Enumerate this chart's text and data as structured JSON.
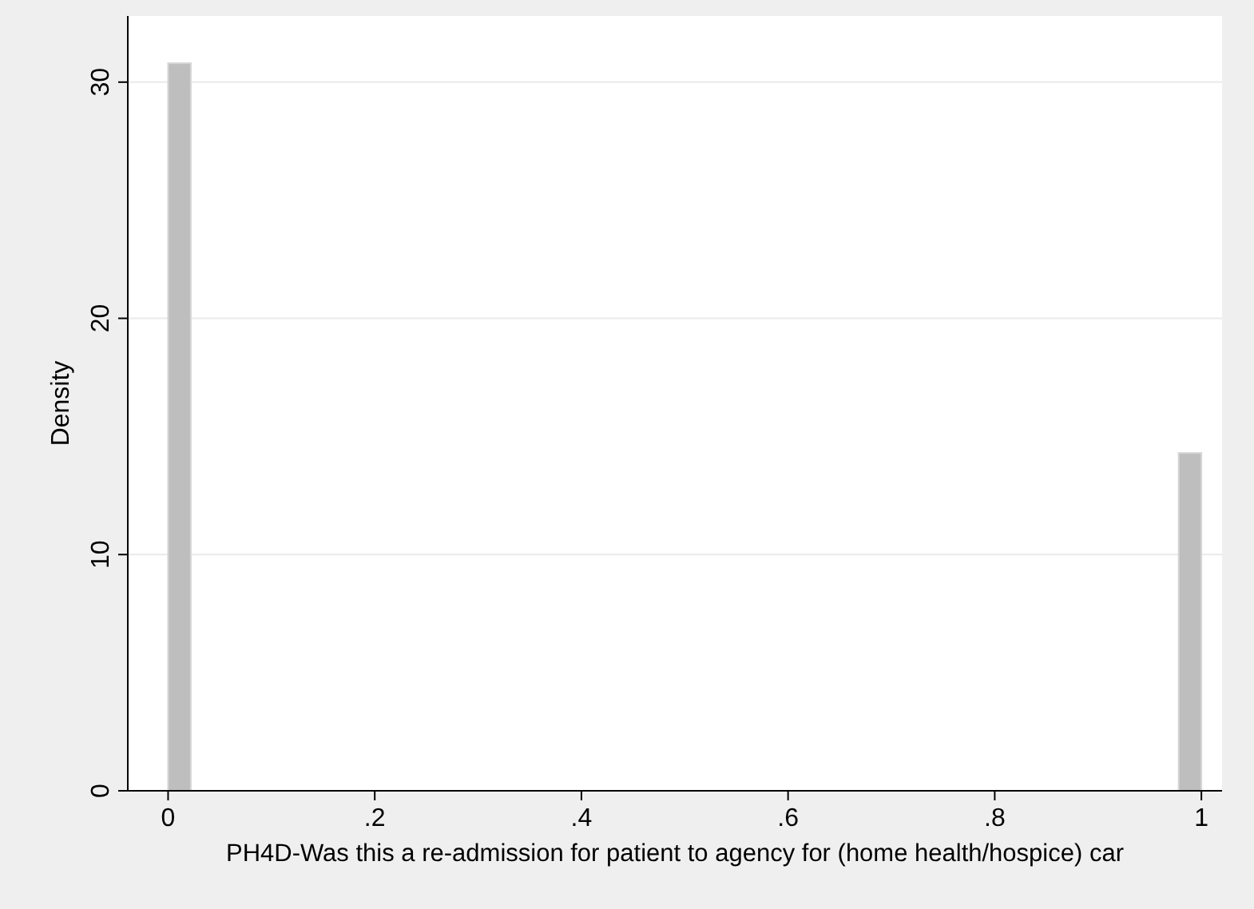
{
  "chart_data": {
    "type": "histogram",
    "xlabel": "PH4D-Was this a re-admission for patient to agency for (home health/hospice) car",
    "ylabel": "Density",
    "bins": [
      0,
      0.022,
      0.978,
      1
    ],
    "values": [
      30.8,
      0,
      14.3
    ],
    "color": "#bebebe",
    "xlim": [
      -0.039,
      1.02
    ],
    "ylim": [
      0,
      32.8
    ],
    "xticks": [
      0,
      {
        "value": 0.2,
        "label": ".2"
      },
      {
        "value": 0.4,
        "label": ".4"
      },
      {
        "value": 0.6,
        "label": ".6"
      },
      {
        "value": 0.8,
        "label": ".8"
      },
      1
    ],
    "yticks": [
      0,
      10,
      20,
      30
    ],
    "grid": "y"
  }
}
